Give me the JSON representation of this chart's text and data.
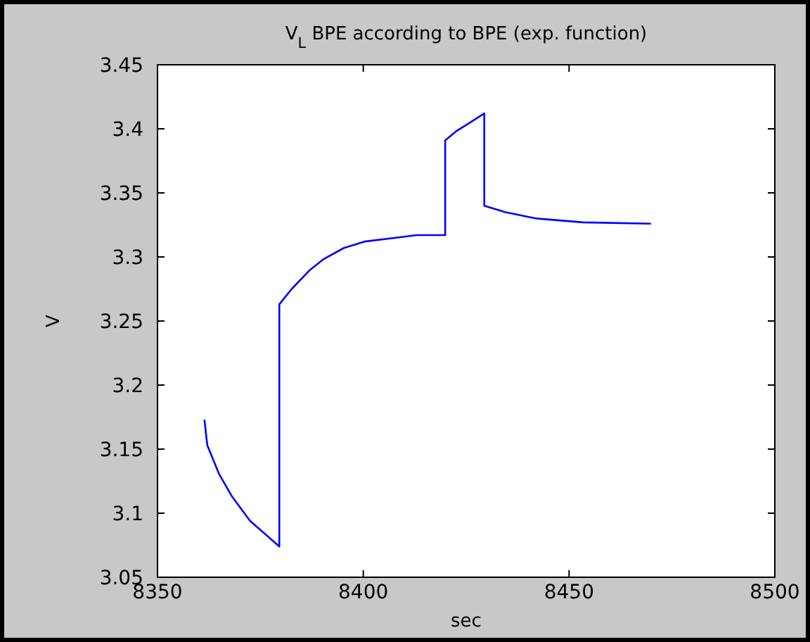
{
  "chart_data": {
    "type": "line",
    "title": "V$_{L}$ BPE according to BPE (exp. function)",
    "xlabel": "sec",
    "ylabel": "V",
    "xlim": [
      8350,
      8500
    ],
    "xticks": [
      8350,
      8400,
      8450,
      8500
    ],
    "ylim": [
      3.05,
      3.45
    ],
    "yticks": [
      3.05,
      3.1,
      3.15,
      3.2,
      3.25,
      3.3,
      3.35,
      3.4,
      3.45
    ],
    "grid": false,
    "line_style": "solid",
    "series": [
      {
        "color": "#0000ff",
        "x": [
          8361.4,
          8362.1,
          8364.9,
          8368.1,
          8372.5,
          8379.6,
          8379.6,
          8382.6,
          8387.1,
          8390.2,
          8395.3,
          8400.3,
          8407.9,
          8413,
          8419.9,
          8419.9,
          8422.5,
          8425,
          8429.4,
          8429.4,
          8434.4,
          8442.1,
          8453.4,
          8469.9
        ],
        "values": [
          3.173,
          3.153,
          3.131,
          3.113,
          3.094,
          3.074,
          3.263,
          3.275,
          3.29,
          3.298,
          3.307,
          3.312,
          3.315,
          3.317,
          3.317,
          3.391,
          3.398,
          3.403,
          3.412,
          3.34,
          3.335,
          3.33,
          3.327,
          3.326
        ]
      }
    ]
  }
}
